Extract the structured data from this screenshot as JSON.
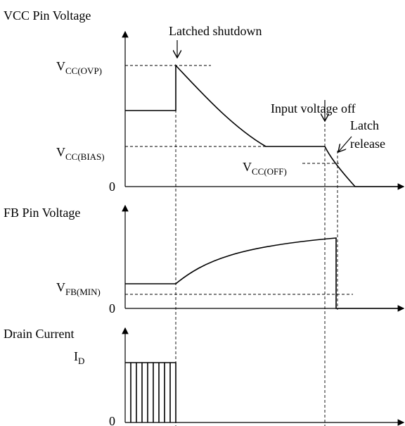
{
  "panels": [
    {
      "title": "VCC Pin Voltage",
      "levels": [
        {
          "main": "V",
          "sub": "CC(OVP)"
        },
        {
          "main": "V",
          "sub": "CC(BIAS)"
        },
        {
          "main": "V",
          "sub": "CC(OFF)"
        }
      ],
      "zero": "0",
      "annotations": [
        "Latched shutdown",
        "Input voltage off",
        "Latch",
        "release"
      ]
    },
    {
      "title": "FB Pin Voltage",
      "levels": [
        {
          "main": "V",
          "sub": "FB(MIN)"
        }
      ],
      "zero": "0"
    },
    {
      "title": "Drain Current",
      "levels": [
        {
          "main": "I",
          "sub": "D"
        }
      ],
      "zero": "0"
    }
  ]
}
